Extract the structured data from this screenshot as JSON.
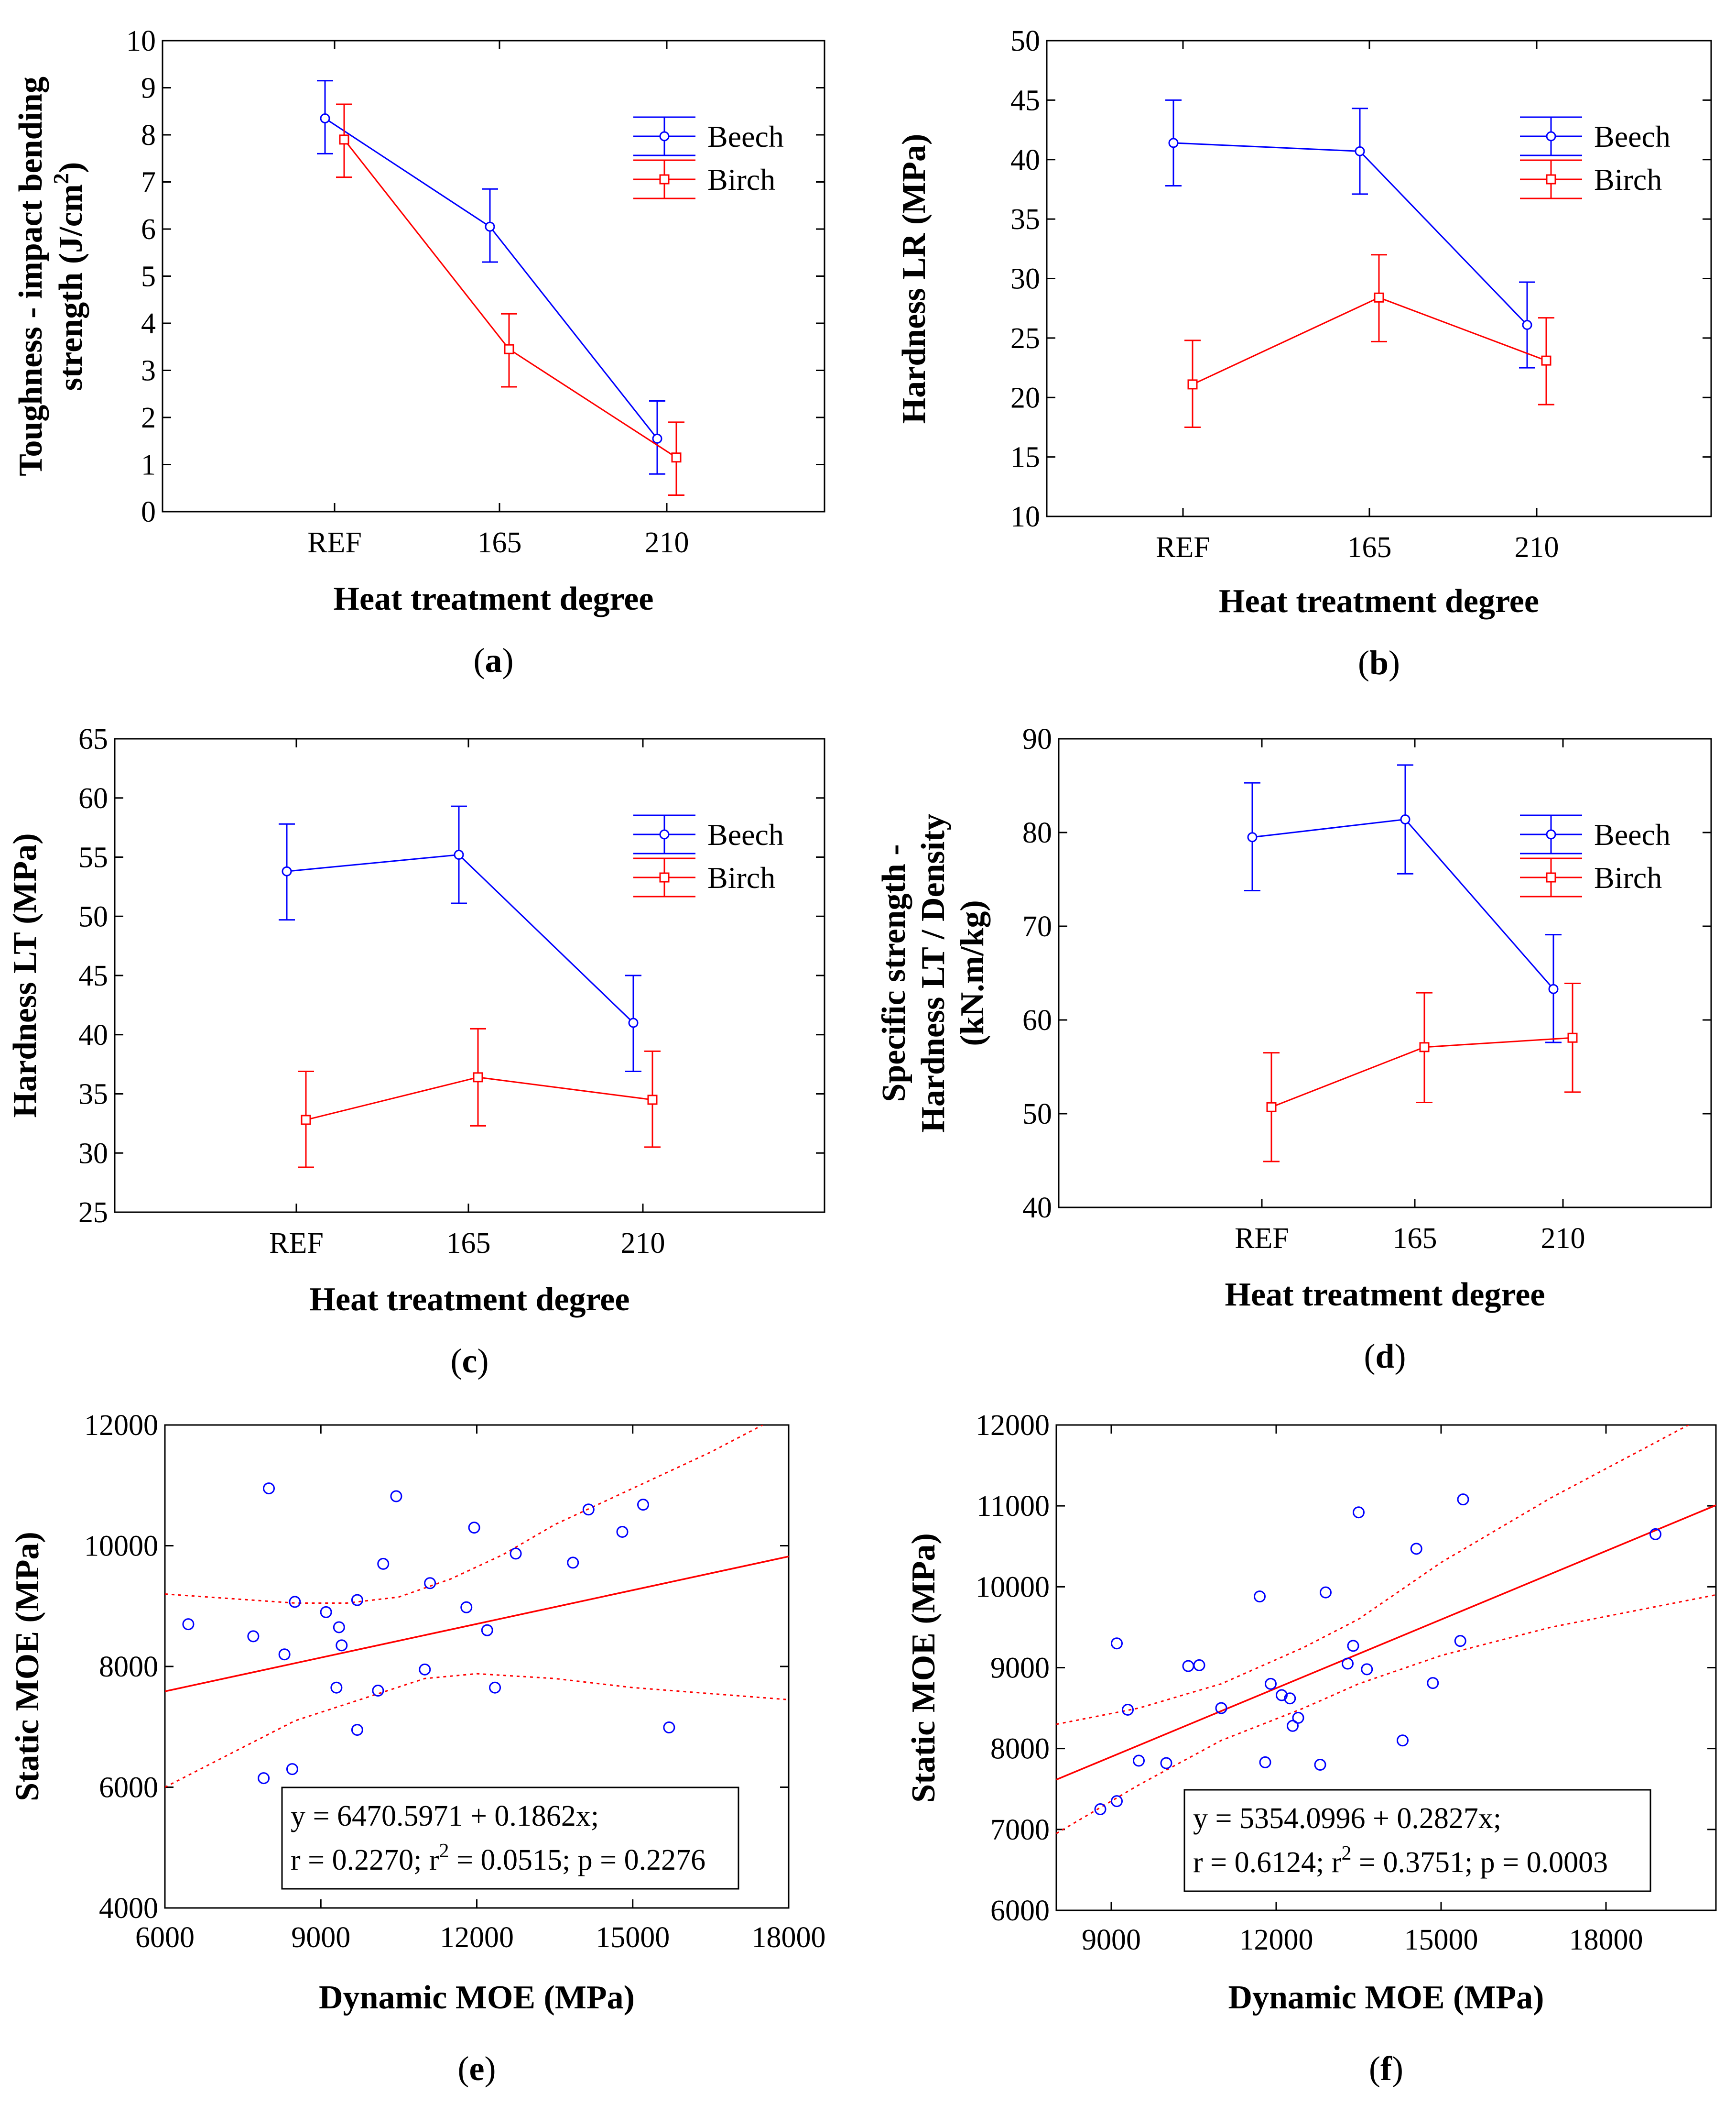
{
  "chart_data": [
    {
      "type": "line",
      "panel": "a",
      "caption": "a",
      "categories": [
        "REF",
        "165",
        "210"
      ],
      "xlabel": "Heat treatment degree",
      "ylabel_line1": "Toughness - impact bending",
      "ylabel_line2": "strength (J/cm",
      "ylabel_sup": "2",
      "ylabel_end": ")",
      "ylim": [
        0,
        10
      ],
      "yticks": [
        0,
        1,
        2,
        3,
        4,
        5,
        6,
        7,
        8,
        9,
        10
      ],
      "legend_position": "top-right",
      "series": [
        {
          "name": "Beech",
          "color": "#0000ff",
          "marker": "circle",
          "values": [
            8.35,
            6.05,
            1.55
          ],
          "err_low": [
            7.6,
            5.3,
            0.8
          ],
          "err_high": [
            9.15,
            6.85,
            2.35
          ]
        },
        {
          "name": "Birch",
          "color": "#ff0000",
          "marker": "square",
          "values": [
            7.9,
            3.45,
            1.15
          ],
          "err_low": [
            7.1,
            2.65,
            0.35
          ],
          "err_high": [
            8.65,
            4.2,
            1.9
          ]
        }
      ]
    },
    {
      "type": "line",
      "panel": "b",
      "caption": "b",
      "categories": [
        "REF",
        "165",
        "210"
      ],
      "xlabel": "Heat treatment degree",
      "ylabel_line1": "",
      "ylabel_line2": "Hardness LR (MPa)",
      "ylabel_sup": "",
      "ylabel_end": "",
      "ylim": [
        10,
        50
      ],
      "yticks": [
        10,
        15,
        20,
        25,
        30,
        35,
        40,
        45,
        50
      ],
      "legend_position": "top-right",
      "series": [
        {
          "name": "Beech",
          "color": "#0000ff",
          "marker": "circle",
          "values": [
            41.4,
            40.7,
            26.1
          ],
          "err_low": [
            37.8,
            37.1,
            22.5
          ],
          "err_high": [
            45.0,
            44.3,
            29.7
          ]
        },
        {
          "name": "Birch",
          "color": "#ff0000",
          "marker": "square",
          "values": [
            21.1,
            28.4,
            23.1
          ],
          "err_low": [
            17.5,
            24.7,
            19.4
          ],
          "err_high": [
            24.8,
            32.0,
            26.7
          ]
        }
      ]
    },
    {
      "type": "line",
      "panel": "c",
      "caption": "c",
      "categories": [
        "REF",
        "165",
        "210"
      ],
      "xlabel": "Heat treatment degree",
      "ylabel_line1": "",
      "ylabel_line2": "Hardness LT (MPa)",
      "ylabel_sup": "",
      "ylabel_end": "",
      "ylim": [
        25,
        65
      ],
      "yticks": [
        25,
        30,
        35,
        40,
        45,
        50,
        55,
        60,
        65
      ],
      "legend_position": "top-right",
      "series": [
        {
          "name": "Beech",
          "color": "#0000ff",
          "marker": "circle",
          "values": [
            53.8,
            55.2,
            41.0
          ],
          "err_low": [
            49.7,
            51.1,
            36.9
          ],
          "err_high": [
            57.8,
            59.3,
            45.0
          ]
        },
        {
          "name": "Birch",
          "color": "#ff0000",
          "marker": "square",
          "values": [
            32.8,
            36.4,
            34.5
          ],
          "err_low": [
            28.8,
            32.3,
            30.5
          ],
          "err_high": [
            36.9,
            40.5,
            38.6
          ]
        }
      ]
    },
    {
      "type": "line",
      "panel": "d",
      "caption": "d",
      "categories": [
        "REF",
        "165",
        "210"
      ],
      "xlabel": "Heat treatment degree",
      "ylabel_line1": "Specific strength -",
      "ylabel_line2": "Hardness LT / Density",
      "ylabel_line3": "(kN.m/kg)",
      "ylabel_sup": "",
      "ylabel_end": "",
      "ylim": [
        40,
        90
      ],
      "yticks": [
        40,
        50,
        60,
        70,
        80,
        90
      ],
      "legend_position": "top-right",
      "series": [
        {
          "name": "Beech",
          "color": "#0000ff",
          "marker": "circle",
          "values": [
            79.5,
            81.4,
            63.3
          ],
          "err_low": [
            73.8,
            75.6,
            57.6
          ],
          "err_high": [
            85.3,
            87.2,
            69.1
          ]
        },
        {
          "name": "Birch",
          "color": "#ff0000",
          "marker": "square",
          "values": [
            50.7,
            57.1,
            58.1
          ],
          "err_low": [
            44.9,
            51.2,
            52.3
          ],
          "err_high": [
            56.5,
            62.9,
            63.9
          ]
        }
      ]
    },
    {
      "type": "scatter",
      "panel": "e",
      "caption": "e",
      "xlabel": "Dynamic MOE (MPa)",
      "ylabel": "Static MOE (MPa)",
      "xlim": [
        6000,
        18000
      ],
      "ylim": [
        4000,
        12000
      ],
      "xticks": [
        6000,
        9000,
        12000,
        15000,
        18000
      ],
      "yticks": [
        4000,
        6000,
        8000,
        10000,
        12000
      ],
      "intercept": 6470.5971,
      "slope": 0.1862,
      "ci_band": {
        "lower": [
          [
            6000,
            6000
          ],
          [
            8500,
            7100
          ],
          [
            11000,
            7800
          ],
          [
            12000,
            7880
          ],
          [
            13500,
            7800
          ],
          [
            15000,
            7650
          ],
          [
            18000,
            7450
          ]
        ],
        "upper": [
          [
            6000,
            9200
          ],
          [
            8500,
            9050
          ],
          [
            9500,
            9050
          ],
          [
            10500,
            9150
          ],
          [
            11500,
            9450
          ],
          [
            12500,
            9850
          ],
          [
            13500,
            10350
          ],
          [
            15000,
            10950
          ],
          [
            16500,
            11550
          ],
          [
            17500,
            12000
          ]
        ]
      },
      "equation": "y = 6470.5971 + 0.1862x;",
      "stats_line_pre": "r = 0.2270; r",
      "stats_sup": "2",
      "stats_line_post": " = 0.0515; p = 0.2276",
      "points": [
        [
          6450,
          8700
        ],
        [
          7700,
          8500
        ],
        [
          7900,
          6150
        ],
        [
          8000,
          10950
        ],
        [
          8300,
          8200
        ],
        [
          8450,
          6300
        ],
        [
          8500,
          9070
        ],
        [
          9100,
          8900
        ],
        [
          9350,
          8650
        ],
        [
          9400,
          8350
        ],
        [
          9300,
          7650
        ],
        [
          9700,
          9100
        ],
        [
          9700,
          6950
        ],
        [
          10100,
          7600
        ],
        [
          10200,
          9700
        ],
        [
          10450,
          10820
        ],
        [
          11000,
          7950
        ],
        [
          11100,
          9380
        ],
        [
          11800,
          8980
        ],
        [
          11950,
          10300
        ],
        [
          12200,
          8600
        ],
        [
          12350,
          7650
        ],
        [
          12750,
          9870
        ],
        [
          13850,
          9720
        ],
        [
          14150,
          10600
        ],
        [
          14800,
          10230
        ],
        [
          15200,
          10680
        ],
        [
          15700,
          6990
        ]
      ]
    },
    {
      "type": "scatter",
      "panel": "f",
      "caption": "f",
      "xlabel": "Dynamic MOE (MPa)",
      "ylabel": "Static MOE (MPa)",
      "xlim": [
        8000,
        20000
      ],
      "ylim": [
        6000,
        12000
      ],
      "xticks": [
        9000,
        12000,
        15000,
        18000
      ],
      "yticks": [
        6000,
        7000,
        8000,
        9000,
        10000,
        11000,
        12000
      ],
      "intercept": 5354.0996,
      "slope": 0.2827,
      "ci_band": {
        "lower": [
          [
            8000,
            6950
          ],
          [
            9500,
            7550
          ],
          [
            11000,
            8100
          ],
          [
            12500,
            8500
          ],
          [
            13500,
            8800
          ],
          [
            15000,
            9150
          ],
          [
            17000,
            9500
          ],
          [
            20000,
            9900
          ]
        ],
        "upper": [
          [
            8000,
            8300
          ],
          [
            9500,
            8500
          ],
          [
            11000,
            8800
          ],
          [
            12500,
            9250
          ],
          [
            13500,
            9600
          ],
          [
            15000,
            10300
          ],
          [
            17000,
            11100
          ],
          [
            19500,
            12000
          ]
        ]
      },
      "equation": "y = 5354.0996 + 0.2827x;",
      "stats_line_pre": "r = 0.6124; r",
      "stats_sup": "2",
      "stats_line_post": " = 0.3751; p = 0.0003",
      "points": [
        [
          8800,
          7250
        ],
        [
          9100,
          9300
        ],
        [
          9100,
          7350
        ],
        [
          9300,
          8480
        ],
        [
          9500,
          7850
        ],
        [
          10000,
          7820
        ],
        [
          10400,
          9020
        ],
        [
          10600,
          9030
        ],
        [
          11000,
          8500
        ],
        [
          11700,
          9880
        ],
        [
          11800,
          7830
        ],
        [
          11900,
          8800
        ],
        [
          12100,
          8660
        ],
        [
          12250,
          8620
        ],
        [
          12300,
          8280
        ],
        [
          12400,
          8380
        ],
        [
          12800,
          7800
        ],
        [
          12900,
          9930
        ],
        [
          13300,
          9050
        ],
        [
          13400,
          9270
        ],
        [
          13500,
          10920
        ],
        [
          13650,
          8980
        ],
        [
          14300,
          8100
        ],
        [
          14550,
          10470
        ],
        [
          14850,
          8810
        ],
        [
          15350,
          9330
        ],
        [
          15400,
          11080
        ],
        [
          18900,
          10650
        ]
      ]
    }
  ]
}
